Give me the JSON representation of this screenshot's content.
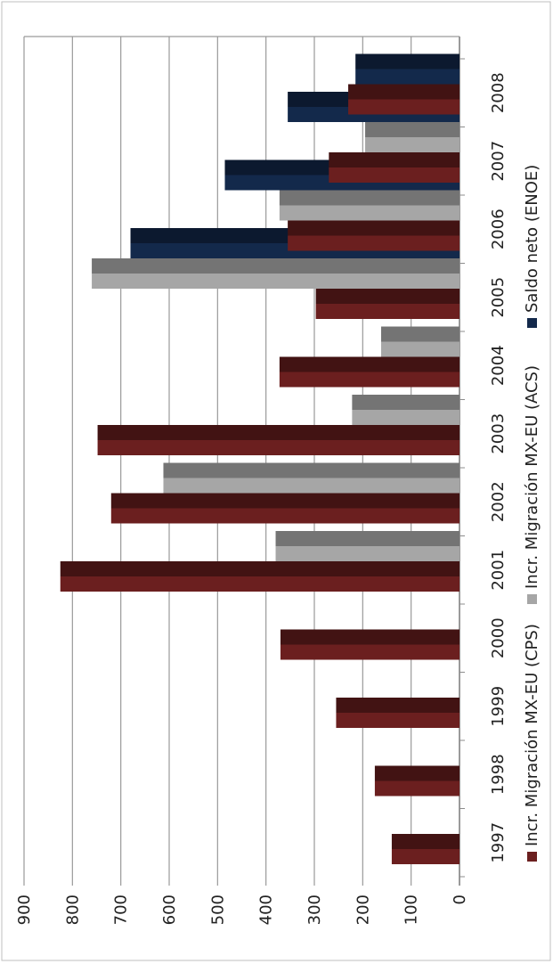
{
  "chart_data": {
    "type": "bar",
    "orientation": "horizontal bars (figure rotated 90°; value axis runs vertically along the bottom of the image)",
    "categories": [
      "1997",
      "1998",
      "1999",
      "2000",
      "2001",
      "2002",
      "2003",
      "2004",
      "2005",
      "2006",
      "2007",
      "2008"
    ],
    "series": [
      {
        "name": "Incr. Migración MX-EU (CPS)",
        "color": "#6b1f1f",
        "values": [
          140,
          175,
          255,
          370,
          825,
          720,
          748,
          372,
          297,
          355,
          270,
          230
        ]
      },
      {
        "name": "Incr. Migración MX-EU (ACS)",
        "color": "#a6a6a6",
        "values": [
          null,
          null,
          null,
          null,
          380,
          612,
          222,
          162,
          760,
          372,
          195,
          null
        ]
      },
      {
        "name": "Saldo neto (ENOE)",
        "color": "#13294b",
        "values": [
          null,
          null,
          null,
          null,
          null,
          null,
          null,
          null,
          680,
          485,
          355,
          215
        ]
      }
    ],
    "value_axis": {
      "ticks": [
        "0",
        "100",
        "200",
        "300",
        "400",
        "500",
        "600",
        "700",
        "800",
        "900"
      ],
      "range": [
        0,
        900
      ]
    },
    "grid": true,
    "legend": "bottom (rotated, reads along the right side)",
    "title": "",
    "xlabel": "",
    "ylabel": ""
  }
}
